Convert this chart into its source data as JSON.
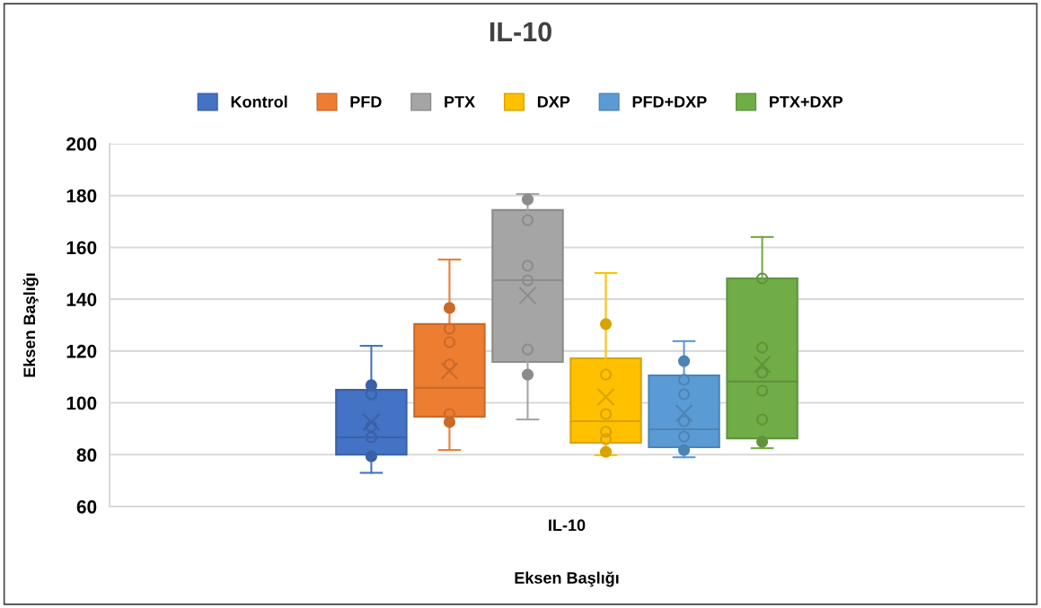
{
  "chart_data": {
    "type": "box",
    "title": "IL-10",
    "xlabel": "Eksen Başlığı",
    "ylabel": "Eksen Başlığı",
    "categories": [
      "IL-10"
    ],
    "ylim": [
      60,
      200
    ],
    "yticks": [
      60,
      80,
      100,
      120,
      140,
      160,
      180,
      200
    ],
    "grid": "y",
    "legend": "top",
    "marker": "circle",
    "series": [
      {
        "name": "Kontrol",
        "color": "#4472c4",
        "boxes": [
          {
            "low": 73,
            "q1": 80,
            "median": 86.7,
            "q3": 105,
            "high": 122,
            "mean": 92.6
          }
        ]
      },
      {
        "name": "PFD",
        "color": "#ed7d31",
        "boxes": [
          {
            "low": 81.8,
            "q1": 94.7,
            "median": 105.8,
            "q3": 130.4,
            "high": 155.3,
            "mean": 112.3
          }
        ]
      },
      {
        "name": "PTX",
        "color": "#a5a5a5",
        "boxes": [
          {
            "low": 93.6,
            "q1": 115.8,
            "median": 147.3,
            "q3": 174.4,
            "high": 180.6,
            "mean": 141.4
          }
        ]
      },
      {
        "name": "DXP",
        "color": "#ffc000",
        "boxes": [
          {
            "low": 79.8,
            "q1": 84.6,
            "median": 92.9,
            "q3": 117.2,
            "high": 150.1,
            "mean": 102.3
          }
        ]
      },
      {
        "name": "PFD+DXP",
        "color": "#5b9bd5",
        "boxes": [
          {
            "low": 79,
            "q1": 82.9,
            "median": 89.8,
            "q3": 110.6,
            "high": 123.8,
            "mean": 96
          }
        ]
      },
      {
        "name": "PTX+DXP",
        "color": "#70ad47",
        "boxes": [
          {
            "low": 82.5,
            "q1": 86.3,
            "median": 108.2,
            "q3": 148,
            "high": 164,
            "mean": 114.8
          }
        ]
      },
      {
        "type": "scatter",
        "color": "#3a61a7",
        "x": [
          "IL-10",
          "IL-10",
          "IL-10",
          "IL-10",
          "IL-10"
        ],
        "values": [
          106.8,
          103.3,
          90.9,
          86.7,
          79.4
        ]
      },
      {
        "type": "scatter",
        "color": "#c96a2a",
        "x": [
          "IL-10",
          "IL-10",
          "IL-10",
          "IL-10",
          "IL-10",
          "IL-10"
        ],
        "values": [
          136.6,
          128.6,
          123.4,
          114.8,
          95.7,
          92.6
        ]
      },
      {
        "type": "scatter",
        "color": "#8c8c8c",
        "x": [
          "IL-10",
          "IL-10",
          "IL-10",
          "IL-10",
          "IL-10",
          "IL-10"
        ],
        "values": [
          178.5,
          170.5,
          152.9,
          147.3,
          120.6,
          110.9
        ]
      },
      {
        "type": "scatter",
        "color": "#d9a300",
        "x": [
          "IL-10",
          "IL-10",
          "IL-10",
          "IL-10",
          "IL-10",
          "IL-10"
        ],
        "values": [
          130.4,
          110.9,
          95.7,
          88.9,
          86,
          81.1
        ]
      },
      {
        "type": "scatter",
        "color": "#4d84b5",
        "x": [
          "IL-10",
          "IL-10",
          "IL-10",
          "IL-10",
          "IL-10",
          "IL-10"
        ],
        "values": [
          116.1,
          108.9,
          103.3,
          92.9,
          87,
          81.8
        ]
      },
      {
        "type": "scatter",
        "color": "#5f933c",
        "x": [
          "IL-10",
          "IL-10",
          "IL-10",
          "IL-10",
          "IL-10",
          "IL-10"
        ],
        "values": [
          148,
          121.3,
          111.6,
          104.7,
          93.6,
          85
        ]
      }
    ]
  }
}
